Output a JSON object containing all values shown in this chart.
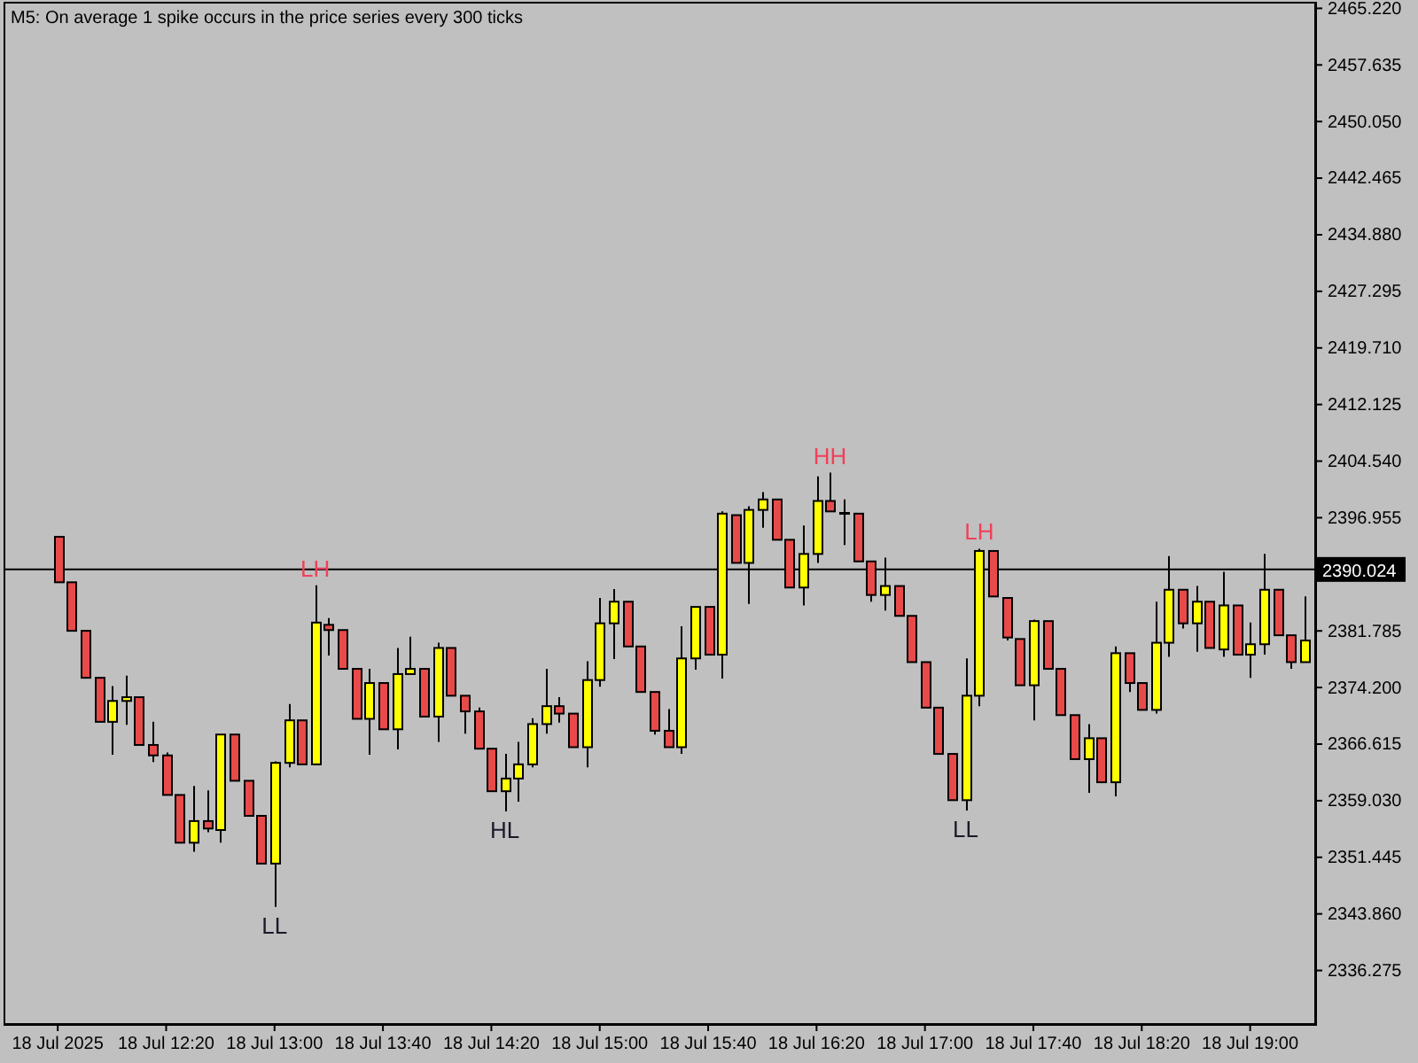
{
  "chart_data": {
    "type": "candlestick",
    "title": "M5:  On average 1 spike occurs in the price series every 300 ticks",
    "x": [
      "2025-07-18T11:40",
      "2025-07-18T11:45",
      "2025-07-18T11:50",
      "2025-07-18T11:55",
      "2025-07-18T12:00",
      "2025-07-18T12:05",
      "2025-07-18T12:10",
      "2025-07-18T12:15",
      "2025-07-18T12:20",
      "2025-07-18T12:25",
      "2025-07-18T12:30",
      "2025-07-18T12:35",
      "2025-07-18T12:40",
      "2025-07-18T12:45",
      "2025-07-18T12:50",
      "2025-07-18T12:55",
      "2025-07-18T13:00",
      "2025-07-18T13:05",
      "2025-07-18T13:10",
      "2025-07-18T13:15",
      "2025-07-18T13:20",
      "2025-07-18T13:25",
      "2025-07-18T13:30",
      "2025-07-18T13:35",
      "2025-07-18T13:40",
      "2025-07-18T13:45",
      "2025-07-18T13:50",
      "2025-07-18T13:55",
      "2025-07-18T14:00",
      "2025-07-18T14:05",
      "2025-07-18T14:10",
      "2025-07-18T14:15",
      "2025-07-18T14:20",
      "2025-07-18T14:25",
      "2025-07-18T14:30",
      "2025-07-18T14:35",
      "2025-07-18T14:40",
      "2025-07-18T14:45",
      "2025-07-18T14:50",
      "2025-07-18T14:55",
      "2025-07-18T15:00",
      "2025-07-18T15:05",
      "2025-07-18T15:10",
      "2025-07-18T15:15",
      "2025-07-18T15:20",
      "2025-07-18T15:25",
      "2025-07-18T15:30",
      "2025-07-18T15:35",
      "2025-07-18T15:40",
      "2025-07-18T15:45",
      "2025-07-18T15:50",
      "2025-07-18T15:55",
      "2025-07-18T16:00",
      "2025-07-18T16:05",
      "2025-07-18T16:10",
      "2025-07-18T16:15",
      "2025-07-18T16:20",
      "2025-07-18T16:25",
      "2025-07-18T16:30",
      "2025-07-18T16:35",
      "2025-07-18T16:40",
      "2025-07-18T16:45",
      "2025-07-18T16:50",
      "2025-07-18T16:55",
      "2025-07-18T17:00",
      "2025-07-18T17:05",
      "2025-07-18T17:10",
      "2025-07-18T17:15",
      "2025-07-18T17:20",
      "2025-07-18T17:25",
      "2025-07-18T17:30",
      "2025-07-18T17:35",
      "2025-07-18T17:40",
      "2025-07-18T17:45",
      "2025-07-18T17:50",
      "2025-07-18T17:55",
      "2025-07-18T18:00",
      "2025-07-18T18:05",
      "2025-07-18T18:10",
      "2025-07-18T18:15",
      "2025-07-18T18:20",
      "2025-07-18T18:25",
      "2025-07-18T18:30",
      "2025-07-18T18:35",
      "2025-07-18T18:40",
      "2025-07-18T18:45",
      "2025-07-18T18:50",
      "2025-07-18T18:55",
      "2025-07-18T19:00",
      "2025-07-18T19:05",
      "2025-07-18T19:10",
      "2025-07-18T19:15",
      "2025-07-18T19:20"
    ],
    "ohlc": [
      [
        2394.4,
        2394.4,
        2388.3,
        2388.3
      ],
      [
        2388.3,
        2388.3,
        2381.8,
        2381.8
      ],
      [
        2381.8,
        2381.8,
        2375.5,
        2375.5
      ],
      [
        2375.5,
        2375.5,
        2369.6,
        2369.6
      ],
      [
        2369.6,
        2374.4,
        2365.2,
        2372.4
      ],
      [
        2372.4,
        2375.8,
        2369.2,
        2372.9
      ],
      [
        2372.9,
        2372.9,
        2366.5,
        2366.5
      ],
      [
        2366.5,
        2369.6,
        2364.2,
        2365.1
      ],
      [
        2365.1,
        2365.5,
        2359.8,
        2359.8
      ],
      [
        2359.8,
        2359.8,
        2353.4,
        2353.4
      ],
      [
        2353.4,
        2361.0,
        2352.2,
        2356.3
      ],
      [
        2356.3,
        2360.4,
        2354.8,
        2355.3
      ],
      [
        2355.1,
        2367.9,
        2353.4,
        2367.9
      ],
      [
        2367.9,
        2367.9,
        2361.7,
        2361.7
      ],
      [
        2361.7,
        2361.7,
        2357.0,
        2357.0
      ],
      [
        2357.0,
        2357.0,
        2350.6,
        2350.6
      ],
      [
        2350.6,
        2364.3,
        2344.8,
        2364.1
      ],
      [
        2364.1,
        2372.0,
        2363.5,
        2369.8
      ],
      [
        2369.8,
        2369.8,
        2363.9,
        2363.9
      ],
      [
        2363.9,
        2387.9,
        2363.9,
        2382.9
      ],
      [
        2382.6,
        2383.5,
        2378.5,
        2381.9
      ],
      [
        2381.9,
        2381.9,
        2376.7,
        2376.7
      ],
      [
        2376.7,
        2376.7,
        2370.0,
        2370.0
      ],
      [
        2370.0,
        2376.7,
        2365.2,
        2374.8
      ],
      [
        2374.8,
        2374.8,
        2368.6,
        2368.6
      ],
      [
        2368.6,
        2379.5,
        2365.9,
        2376.0
      ],
      [
        2376.0,
        2381.0,
        2376.0,
        2376.7
      ],
      [
        2376.7,
        2376.7,
        2370.3,
        2370.3
      ],
      [
        2370.3,
        2380.2,
        2366.9,
        2379.5
      ],
      [
        2379.5,
        2379.5,
        2373.1,
        2373.1
      ],
      [
        2373.1,
        2373.1,
        2368.0,
        2371.0
      ],
      [
        2371.0,
        2371.5,
        2366.0,
        2366.0
      ],
      [
        2366.0,
        2366.0,
        2360.3,
        2360.3
      ],
      [
        2360.3,
        2365.3,
        2357.6,
        2362.0
      ],
      [
        2362.0,
        2366.9,
        2358.9,
        2363.9
      ],
      [
        2363.9,
        2370.1,
        2363.5,
        2369.3
      ],
      [
        2369.3,
        2376.7,
        2368.0,
        2371.7
      ],
      [
        2371.7,
        2372.9,
        2369.5,
        2370.7
      ],
      [
        2370.7,
        2370.7,
        2366.2,
        2366.2
      ],
      [
        2366.2,
        2377.7,
        2363.5,
        2375.2
      ],
      [
        2375.2,
        2386.2,
        2374.3,
        2382.8
      ],
      [
        2382.8,
        2387.4,
        2378.0,
        2385.7
      ],
      [
        2385.7,
        2385.7,
        2379.7,
        2379.7
      ],
      [
        2379.7,
        2379.7,
        2373.6,
        2373.6
      ],
      [
        2373.6,
        2373.6,
        2367.9,
        2368.4
      ],
      [
        2368.4,
        2371.3,
        2366.2,
        2366.2
      ],
      [
        2366.2,
        2382.4,
        2365.3,
        2378.1
      ],
      [
        2378.1,
        2385.0,
        2376.6,
        2385.0
      ],
      [
        2385.0,
        2385.0,
        2378.6,
        2378.6
      ],
      [
        2378.6,
        2397.8,
        2375.4,
        2397.5
      ],
      [
        2397.3,
        2397.3,
        2390.9,
        2390.9
      ],
      [
        2390.9,
        2398.5,
        2385.4,
        2398.0
      ],
      [
        2398.0,
        2400.4,
        2395.6,
        2399.4
      ],
      [
        2399.4,
        2399.4,
        2394.0,
        2394.0
      ],
      [
        2394.0,
        2394.0,
        2387.6,
        2387.6
      ],
      [
        2387.6,
        2395.9,
        2385.2,
        2392.1
      ],
      [
        2392.1,
        2402.5,
        2390.9,
        2399.2
      ],
      [
        2399.2,
        2403.0,
        2397.8,
        2397.8
      ],
      [
        2397.6,
        2399.4,
        2393.3,
        2397.6
      ],
      [
        2397.5,
        2397.5,
        2391.1,
        2391.1
      ],
      [
        2391.1,
        2391.1,
        2385.7,
        2386.6
      ],
      [
        2386.6,
        2391.6,
        2384.5,
        2387.8
      ],
      [
        2387.8,
        2387.8,
        2383.8,
        2383.8
      ],
      [
        2383.8,
        2383.8,
        2377.6,
        2377.6
      ],
      [
        2377.6,
        2377.6,
        2371.5,
        2371.5
      ],
      [
        2371.5,
        2371.5,
        2365.3,
        2365.3
      ],
      [
        2365.3,
        2365.3,
        2359.1,
        2359.1
      ],
      [
        2359.1,
        2378.1,
        2357.7,
        2373.1
      ],
      [
        2373.1,
        2392.8,
        2371.7,
        2392.5
      ],
      [
        2392.5,
        2392.5,
        2386.4,
        2386.4
      ],
      [
        2386.2,
        2386.2,
        2380.5,
        2380.9
      ],
      [
        2380.7,
        2380.7,
        2374.5,
        2374.5
      ],
      [
        2374.5,
        2383.3,
        2369.8,
        2383.1
      ],
      [
        2383.1,
        2383.1,
        2376.7,
        2376.7
      ],
      [
        2376.7,
        2376.7,
        2370.5,
        2370.5
      ],
      [
        2370.5,
        2370.5,
        2364.6,
        2364.6
      ],
      [
        2364.6,
        2369.3,
        2360.1,
        2367.4
      ],
      [
        2367.4,
        2367.4,
        2361.5,
        2361.5
      ],
      [
        2361.5,
        2379.7,
        2359.6,
        2378.8
      ],
      [
        2378.8,
        2378.8,
        2373.6,
        2374.8
      ],
      [
        2374.8,
        2374.8,
        2371.2,
        2371.2
      ],
      [
        2371.2,
        2385.7,
        2370.7,
        2380.2
      ],
      [
        2380.2,
        2391.8,
        2378.3,
        2387.3
      ],
      [
        2387.3,
        2387.3,
        2382.1,
        2382.8
      ],
      [
        2382.8,
        2387.8,
        2379.0,
        2385.7
      ],
      [
        2385.7,
        2385.7,
        2379.5,
        2379.5
      ],
      [
        2379.3,
        2389.7,
        2378.3,
        2385.2
      ],
      [
        2385.2,
        2385.2,
        2378.6,
        2378.6
      ],
      [
        2378.6,
        2382.9,
        2375.5,
        2380.0
      ],
      [
        2380.0,
        2392.1,
        2378.6,
        2387.3
      ],
      [
        2387.3,
        2387.3,
        2381.2,
        2381.2
      ],
      [
        2381.2,
        2381.2,
        2376.7,
        2377.6
      ],
      [
        2377.6,
        2386.4,
        2377.6,
        2380.5
      ]
    ],
    "colors": [
      "#e84a4a",
      "#e84a4a",
      "#e84a4a",
      "#e84a4a",
      "#ffff00",
      "#ffff00",
      "#e84a4a",
      "#e84a4a",
      "#e84a4a",
      "#e84a4a",
      "#ffff00",
      "#e84a4a",
      "#ffff00",
      "#e84a4a",
      "#e84a4a",
      "#e84a4a",
      "#ffff00",
      "#ffff00",
      "#e84a4a",
      "#ffff00",
      "#e84a4a",
      "#e84a4a",
      "#e84a4a",
      "#ffff00",
      "#e84a4a",
      "#ffff00",
      "#ffff00",
      "#e84a4a",
      "#ffff00",
      "#e84a4a",
      "#e84a4a",
      "#e84a4a",
      "#e84a4a",
      "#ffff00",
      "#ffff00",
      "#ffff00",
      "#ffff00",
      "#e84a4a",
      "#e84a4a",
      "#ffff00",
      "#ffff00",
      "#ffff00",
      "#e84a4a",
      "#e84a4a",
      "#e84a4a",
      "#e84a4a",
      "#ffff00",
      "#ffff00",
      "#e84a4a",
      "#ffff00",
      "#e84a4a",
      "#ffff00",
      "#ffff00",
      "#e84a4a",
      "#e84a4a",
      "#ffff00",
      "#ffff00",
      "#e84a4a",
      "#000000",
      "#e84a4a",
      "#e84a4a",
      "#ffff00",
      "#e84a4a",
      "#e84a4a",
      "#e84a4a",
      "#e84a4a",
      "#e84a4a",
      "#ffff00",
      "#ffff00",
      "#e84a4a",
      "#e84a4a",
      "#e84a4a",
      "#ffff00",
      "#e84a4a",
      "#e84a4a",
      "#e84a4a",
      "#ffff00",
      "#e84a4a",
      "#ffff00",
      "#e84a4a",
      "#e84a4a",
      "#ffff00",
      "#ffff00",
      "#e84a4a",
      "#ffff00",
      "#e84a4a",
      "#ffff00",
      "#e84a4a",
      "#ffff00",
      "#ffff00",
      "#e84a4a",
      "#e84a4a",
      "#ffff00"
    ],
    "xlim": [
      "2025-07-18T11:20",
      "2025-07-18T19:24"
    ],
    "xticks": [
      {
        "value": "2025-07-18T11:40",
        "label": "18 Jul 2025"
      },
      {
        "value": "2025-07-18T12:20",
        "label": "18 Jul 12:20"
      },
      {
        "value": "2025-07-18T13:00",
        "label": "18 Jul 13:00"
      },
      {
        "value": "2025-07-18T13:40",
        "label": "18 Jul 13:40"
      },
      {
        "value": "2025-07-18T14:20",
        "label": "18 Jul 14:20"
      },
      {
        "value": "2025-07-18T15:00",
        "label": "18 Jul 15:00"
      },
      {
        "value": "2025-07-18T15:40",
        "label": "18 Jul 15:40"
      },
      {
        "value": "2025-07-18T16:20",
        "label": "18 Jul 16:20"
      },
      {
        "value": "2025-07-18T17:00",
        "label": "18 Jul 17:00"
      },
      {
        "value": "2025-07-18T17:40",
        "label": "18 Jul 17:40"
      },
      {
        "value": "2025-07-18T18:20",
        "label": "18 Jul 18:20"
      },
      {
        "value": "2025-07-18T19:00",
        "label": "18 Jul 19:00"
      }
    ],
    "ylim": [
      2329.1,
      2466.1
    ],
    "yticks": [
      {
        "value": 2336.275,
        "label": "2336.275"
      },
      {
        "value": 2343.86,
        "label": "2343.860"
      },
      {
        "value": 2351.445,
        "label": "2351.445"
      },
      {
        "value": 2359.03,
        "label": "2359.030"
      },
      {
        "value": 2366.615,
        "label": "2366.615"
      },
      {
        "value": 2374.2,
        "label": "2374.200"
      },
      {
        "value": 2381.785,
        "label": "2381.785"
      },
      {
        "value": 2389.37,
        "label": null
      },
      {
        "value": 2396.955,
        "label": "2396.955"
      },
      {
        "value": 2404.54,
        "label": "2404.540"
      },
      {
        "value": 2412.125,
        "label": "2412.125"
      },
      {
        "value": 2419.71,
        "label": "2419.710"
      },
      {
        "value": 2427.295,
        "label": "2427.295"
      },
      {
        "value": 2434.88,
        "label": "2434.880"
      },
      {
        "value": 2442.465,
        "label": "2442.465"
      },
      {
        "value": 2450.05,
        "label": "2450.050"
      },
      {
        "value": 2457.635,
        "label": "2457.635"
      },
      {
        "value": 2465.22,
        "label": "2465.220"
      }
    ],
    "ref_lines": [
      {
        "axis": "y",
        "value": 2390.024,
        "label": "2390.024",
        "color": "#000000"
      }
    ],
    "annotations": [
      {
        "text": "LH",
        "x": "2025-07-18T13:15",
        "y": 2387.9
      },
      {
        "text": "LL",
        "x": "2025-07-18T13:00",
        "y": 2344.8
      },
      {
        "text": "HL",
        "x": "2025-07-18T14:25",
        "y": 2357.6
      },
      {
        "text": "HH",
        "x": "2025-07-18T16:25",
        "y": 2403.0
      },
      {
        "text": "LL",
        "x": "2025-07-18T17:15",
        "y": 2357.7
      },
      {
        "text": "LH",
        "x": "2025-07-18T17:20",
        "y": 2392.8
      }
    ],
    "grid": false
  }
}
